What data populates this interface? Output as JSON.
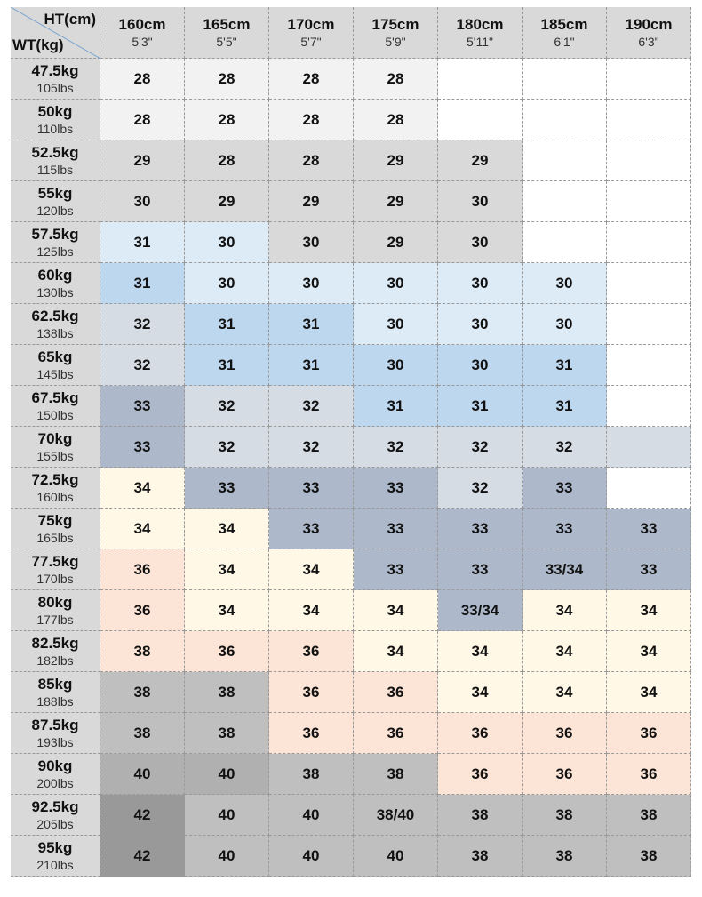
{
  "header": {
    "ht_label": "HT(cm)",
    "wt_label": "WT(kg)"
  },
  "columns": [
    {
      "cm": "160cm",
      "ft": "5'3\""
    },
    {
      "cm": "165cm",
      "ft": "5'5\""
    },
    {
      "cm": "170cm",
      "ft": "5'7\""
    },
    {
      "cm": "175cm",
      "ft": "5'9\""
    },
    {
      "cm": "180cm",
      "ft": "5'11\""
    },
    {
      "cm": "185cm",
      "ft": "6'1\""
    },
    {
      "cm": "190cm",
      "ft": "6'3\""
    }
  ],
  "rows": [
    {
      "kg": "47.5kg",
      "lbs": "105lbs",
      "values": [
        28,
        28,
        28,
        28,
        null,
        null,
        null
      ]
    },
    {
      "kg": "50kg",
      "lbs": "110lbs",
      "values": [
        28,
        28,
        28,
        28,
        null,
        null,
        null
      ]
    },
    {
      "kg": "52.5kg",
      "lbs": "115lbs",
      "values": [
        29,
        28,
        28,
        29,
        29,
        null,
        null
      ]
    },
    {
      "kg": "55kg",
      "lbs": "120lbs",
      "values": [
        30,
        29,
        29,
        29,
        30,
        null,
        null
      ]
    },
    {
      "kg": "57.5kg",
      "lbs": "125lbs",
      "values": [
        31,
        30,
        30,
        29,
        30,
        null,
        null
      ]
    },
    {
      "kg": "60kg",
      "lbs": "130lbs",
      "values": [
        31,
        30,
        30,
        30,
        30,
        30,
        null
      ]
    },
    {
      "kg": "62.5kg",
      "lbs": "138lbs",
      "values": [
        32,
        31,
        31,
        30,
        30,
        30,
        null
      ]
    },
    {
      "kg": "65kg",
      "lbs": "145lbs",
      "values": [
        32,
        31,
        31,
        30,
        30,
        31,
        null
      ]
    },
    {
      "kg": "67.5kg",
      "lbs": "150lbs",
      "values": [
        33,
        32,
        32,
        31,
        31,
        31,
        null
      ]
    },
    {
      "kg": "70kg",
      "lbs": "155lbs",
      "values": [
        33,
        32,
        32,
        32,
        32,
        32,
        null
      ]
    },
    {
      "kg": "72.5kg",
      "lbs": "160lbs",
      "values": [
        34,
        33,
        33,
        33,
        32,
        33,
        null
      ]
    },
    {
      "kg": "75kg",
      "lbs": "165lbs",
      "values": [
        34,
        34,
        33,
        33,
        33,
        33,
        33
      ]
    },
    {
      "kg": "77.5kg",
      "lbs": "170lbs",
      "values": [
        36,
        34,
        34,
        33,
        33,
        "33/34",
        33
      ]
    },
    {
      "kg": "80kg",
      "lbs": "177lbs",
      "values": [
        36,
        34,
        34,
        34,
        "33/34",
        34,
        34
      ]
    },
    {
      "kg": "82.5kg",
      "lbs": "182lbs",
      "values": [
        38,
        36,
        36,
        34,
        34,
        34,
        34
      ]
    },
    {
      "kg": "85kg",
      "lbs": "188lbs",
      "values": [
        38,
        38,
        36,
        36,
        34,
        34,
        34
      ]
    },
    {
      "kg": "87.5kg",
      "lbs": "193lbs",
      "values": [
        38,
        38,
        36,
        36,
        36,
        36,
        36
      ]
    },
    {
      "kg": "90kg",
      "lbs": "200lbs",
      "values": [
        40,
        40,
        38,
        38,
        36,
        36,
        36
      ]
    },
    {
      "kg": "92.5kg",
      "lbs": "205lbs",
      "values": [
        42,
        40,
        40,
        "38/40",
        38,
        38,
        38
      ]
    },
    {
      "kg": "95kg",
      "lbs": "210lbs",
      "values": [
        42,
        40,
        40,
        40,
        38,
        38,
        38
      ]
    }
  ]
}
